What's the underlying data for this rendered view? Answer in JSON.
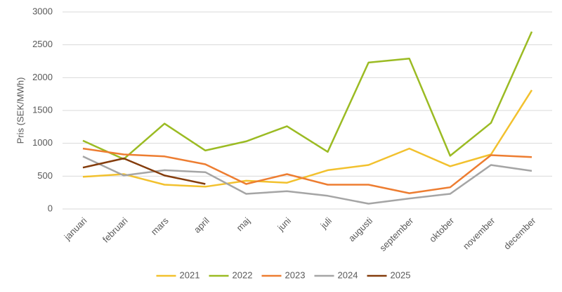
{
  "chart_data": {
    "type": "line",
    "y_label": "Pris (SEK/MWh)",
    "categories": [
      "januari",
      "februari",
      "mars",
      "april",
      "maj",
      "juni",
      "juli",
      "augusti",
      "september",
      "oktober",
      "november",
      "december"
    ],
    "series": [
      {
        "name": "2021",
        "color": "#f2c12e",
        "values": [
          490,
          530,
          370,
          340,
          430,
          400,
          590,
          670,
          920,
          650,
          830,
          1810
        ]
      },
      {
        "name": "2022",
        "color": "#9bbb23",
        "values": [
          1040,
          760,
          1300,
          890,
          1030,
          1260,
          870,
          2230,
          2290,
          810,
          1310,
          2700
        ]
      },
      {
        "name": "2023",
        "color": "#ed7d31",
        "values": [
          920,
          830,
          800,
          680,
          380,
          530,
          370,
          370,
          240,
          330,
          820,
          790
        ]
      },
      {
        "name": "2024",
        "color": "#a5a5a5",
        "values": [
          800,
          510,
          590,
          560,
          230,
          270,
          200,
          80,
          160,
          230,
          670,
          580
        ]
      },
      {
        "name": "2025",
        "color": "#843c0c",
        "values": [
          630,
          770,
          510,
          380,
          null,
          null,
          null,
          null,
          null,
          null,
          null,
          null
        ]
      }
    ],
    "ylim": [
      0,
      3000
    ],
    "yticks": [
      0,
      500,
      1000,
      1500,
      2000,
      2500,
      3000
    ],
    "grid": true,
    "legend": "bottom"
  }
}
